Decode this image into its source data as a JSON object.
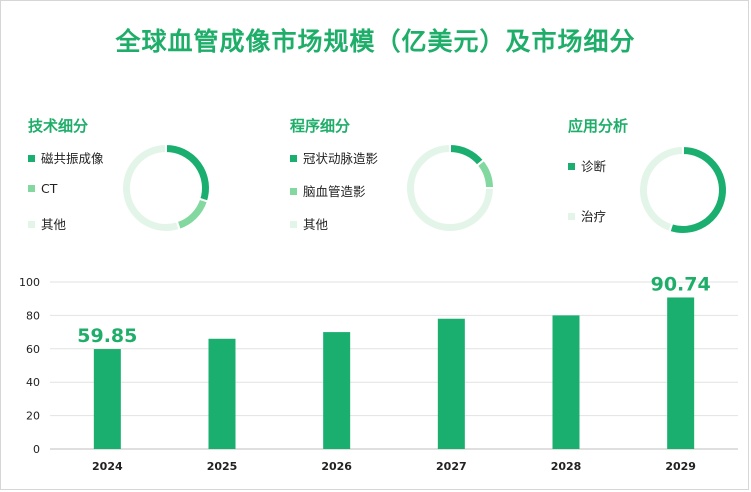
{
  "title": "全球血管成像市场规模（亿美元）及市场细分",
  "colors": {
    "primary": "#1aaf6e",
    "medium": "#82d89e",
    "light": "#e3f5e9",
    "title": "#1fae6a"
  },
  "segments": [
    {
      "title": "技术细分",
      "items": [
        {
          "label": "磁共振成像",
          "color": "#1aaf6e",
          "share": 0.3
        },
        {
          "label": "CT",
          "color": "#82d89e",
          "share": 0.15
        },
        {
          "label": "其他",
          "color": "#e3f5e9",
          "share": 0.55
        }
      ]
    },
    {
      "title": "程序细分",
      "items": [
        {
          "label": "冠状动脉造影",
          "color": "#1aaf6e",
          "share": 0.14
        },
        {
          "label": "脑血管造影",
          "color": "#82d89e",
          "share": 0.11
        },
        {
          "label": "其他",
          "color": "#e3f5e9",
          "share": 0.75
        }
      ]
    },
    {
      "title": "应用分析",
      "items": [
        {
          "label": "诊断",
          "color": "#1aaf6e",
          "share": 0.55
        },
        {
          "label": "治疗",
          "color": "#e3f5e9",
          "share": 0.45
        }
      ]
    }
  ],
  "chart_data": {
    "type": "bar",
    "categories": [
      "2024",
      "2025",
      "2026",
      "2027",
      "2028",
      "2029"
    ],
    "values": [
      59.85,
      66,
      70,
      78,
      80,
      90.74
    ],
    "data_labels": [
      "59.85",
      "",
      "",
      "",
      "",
      "90.74"
    ],
    "yticks": [
      "0",
      "20",
      "40",
      "60",
      "80",
      "100"
    ],
    "ylim": [
      0,
      100
    ],
    "grid": true
  }
}
